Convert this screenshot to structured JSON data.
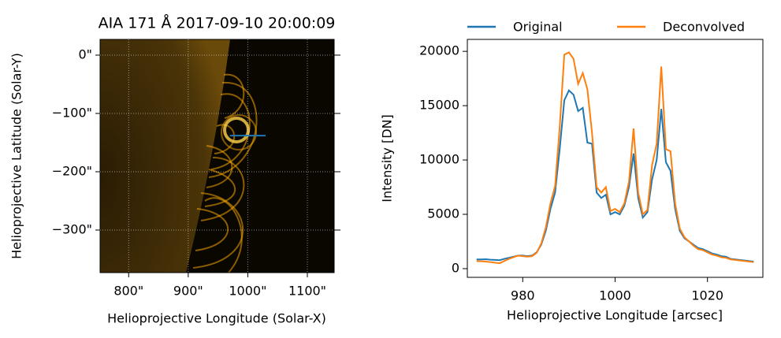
{
  "chart_data": [
    {
      "type": "image",
      "title": "AIA 171 Å 2017-09-10 20:00:09",
      "x_label": "Helioprojective Longitude (Solar-X)",
      "y_label": "Helioprojective Latitude (Solar-Y)",
      "xlim": [
        752,
        1145
      ],
      "ylim": [
        -373,
        27
      ],
      "xticks": [
        {
          "value": 800,
          "label": "800\""
        },
        {
          "value": 900,
          "label": "900\""
        },
        {
          "value": 1000,
          "label": "1000\""
        },
        {
          "value": 1100,
          "label": "1100\""
        }
      ],
      "yticks": [
        {
          "value": 0,
          "label": "0\""
        },
        {
          "value": -100,
          "label": "−100\""
        },
        {
          "value": -200,
          "label": "−200\""
        },
        {
          "value": -300,
          "label": "−300\""
        }
      ],
      "grid": true,
      "slice": {
        "x": [
          970,
          1030
        ],
        "y": [
          -138,
          -138
        ],
        "color": "#1f77b4"
      }
    },
    {
      "type": "line",
      "x_label": "Helioprojective Longitude [arcsec]",
      "y_label": "Intensity [DN]",
      "x": [
        970,
        971,
        972,
        973,
        974,
        975,
        976,
        977,
        978,
        979,
        980,
        981,
        982,
        983,
        984,
        985,
        986,
        987,
        988,
        989,
        990,
        991,
        992,
        993,
        994,
        995,
        996,
        997,
        998,
        999,
        1000,
        1001,
        1002,
        1003,
        1004,
        1005,
        1006,
        1007,
        1008,
        1009,
        1010,
        1011,
        1012,
        1013,
        1014,
        1015,
        1016,
        1017,
        1018,
        1019,
        1020,
        1021,
        1022,
        1023,
        1024,
        1025,
        1026,
        1027,
        1028,
        1029,
        1030
      ],
      "series": [
        {
          "name": "Original",
          "color": "#1f77b4",
          "values": [
            850,
            850,
            870,
            820,
            800,
            780,
            900,
            1000,
            1100,
            1200,
            1200,
            1150,
            1200,
            1500,
            2200,
            3500,
            5500,
            7000,
            11000,
            15500,
            16400,
            16000,
            14500,
            14800,
            11600,
            11500,
            7000,
            6500,
            6800,
            5000,
            5200,
            5000,
            5800,
            7500,
            10600,
            6500,
            4700,
            5200,
            8200,
            10000,
            14700,
            9800,
            9000,
            5500,
            3500,
            2800,
            2500,
            2200,
            1900,
            1800,
            1600,
            1400,
            1300,
            1150,
            1100,
            900,
            850,
            800,
            750,
            700,
            650
          ]
        },
        {
          "name": "Deconvolved",
          "color": "#ff7f0e",
          "values": [
            700,
            680,
            650,
            600,
            550,
            500,
            700,
            900,
            1050,
            1200,
            1150,
            1100,
            1150,
            1450,
            2300,
            3800,
            6000,
            7600,
            13000,
            19700,
            19900,
            19300,
            17000,
            18000,
            16500,
            12500,
            7500,
            7000,
            7500,
            5300,
            5500,
            5200,
            6000,
            8000,
            12900,
            7000,
            5000,
            5400,
            9500,
            11500,
            18600,
            11000,
            10800,
            6000,
            3700,
            2900,
            2500,
            2100,
            1800,
            1700,
            1500,
            1300,
            1200,
            1050,
            1000,
            850,
            800,
            750,
            700,
            650,
            600
          ]
        }
      ],
      "xlim": [
        968,
        1032
      ],
      "ylim": [
        -800,
        21100
      ],
      "xticks": [
        980,
        1000,
        1020
      ],
      "yticks": [
        0,
        5000,
        10000,
        15000,
        20000
      ],
      "legend": "top"
    }
  ]
}
